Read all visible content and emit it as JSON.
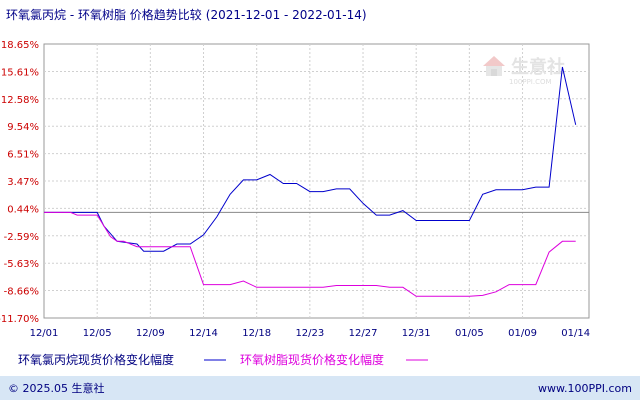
{
  "chart_data": {
    "type": "line",
    "title": "环氧氯丙烷 - 环氧树脂 价格趋势比较",
    "subtitle": "(2021-12-01 - 2022-01-14)",
    "ylim": [
      -11.7,
      18.65
    ],
    "yticks": [
      "18.65%",
      "15.61%",
      "12.58%",
      "9.54%",
      "6.51%",
      "3.47%",
      "0.44%",
      "-2.59%",
      "-5.63%",
      "-8.66%",
      "-11.70%"
    ],
    "ytick_values": [
      18.65,
      15.61,
      12.58,
      9.54,
      6.51,
      3.47,
      0.44,
      -2.59,
      -5.63,
      -8.66,
      -11.7
    ],
    "xticks": [
      "12/01",
      "12/05",
      "12/09",
      "12/14",
      "12/18",
      "12/23",
      "12/27",
      "12/31",
      "01/05",
      "01/09",
      "01/14"
    ],
    "x_count": 33,
    "xtick_index": [
      0,
      4,
      8,
      12,
      16,
      20,
      24,
      28,
      32,
      36,
      40
    ],
    "x_total": 41,
    "zero_line": 0,
    "grid": true,
    "series": [
      {
        "name": "环氧氯丙烷现货价格变化幅度",
        "color": "#0000cc",
        "x": [
          0,
          2,
          2.5,
          4,
          4.5,
          5.5,
          7,
          7.5,
          9,
          10,
          11,
          12,
          13,
          14,
          15,
          16,
          17,
          18,
          19,
          20,
          21,
          22,
          23,
          24,
          25,
          26,
          27,
          28,
          29,
          30,
          31,
          32,
          33,
          34,
          35,
          36,
          37,
          38,
          39,
          40
        ],
        "values": [
          0,
          0,
          0,
          0,
          -1.5,
          -3.2,
          -3.5,
          -4.3,
          -4.3,
          -3.5,
          -3.5,
          -2.5,
          -0.5,
          2.0,
          3.6,
          3.6,
          4.2,
          3.2,
          3.2,
          2.3,
          2.3,
          2.6,
          2.6,
          1.0,
          -0.3,
          -0.3,
          0.2,
          -0.9,
          -0.9,
          -0.9,
          -0.9,
          -0.9,
          2.0,
          2.5,
          2.5,
          2.5,
          2.8,
          2.8,
          16.1,
          9.7
        ]
      },
      {
        "name": "环氧树脂现货价格变化幅度",
        "color": "#dd00dd",
        "x": [
          0,
          2,
          2.5,
          4,
          5,
          5.5,
          6,
          7,
          7.5,
          9,
          10,
          11,
          12,
          13,
          14,
          15,
          16,
          17,
          18,
          19,
          20,
          21,
          22,
          23,
          24,
          25,
          26,
          27,
          28,
          29,
          30,
          31,
          32,
          33,
          34,
          35,
          36,
          37,
          38,
          39,
          40
        ],
        "values": [
          0,
          0,
          -0.3,
          -0.3,
          -2.7,
          -3.2,
          -3.2,
          -3.8,
          -3.8,
          -3.8,
          -3.8,
          -3.8,
          -8.0,
          -8.0,
          -8.0,
          -7.6,
          -8.3,
          -8.3,
          -8.3,
          -8.3,
          -8.3,
          -8.3,
          -8.1,
          -8.1,
          -8.1,
          -8.1,
          -8.3,
          -8.3,
          -9.3,
          -9.3,
          -9.3,
          -9.3,
          -9.3,
          -9.2,
          -8.8,
          -8.0,
          -8.0,
          -8.0,
          -4.4,
          -3.2,
          -3.2
        ]
      }
    ],
    "legend_placement": "bottom"
  },
  "watermark": {
    "cn": "生意社",
    "en": "100PPI.COM"
  },
  "footer": {
    "left": "© 2025.05 生意社",
    "right": "www.100PPI.com"
  },
  "colors": {
    "footer_bar": "#d7e6f5",
    "grid": "#d0d0d0",
    "frame": "#999999"
  }
}
